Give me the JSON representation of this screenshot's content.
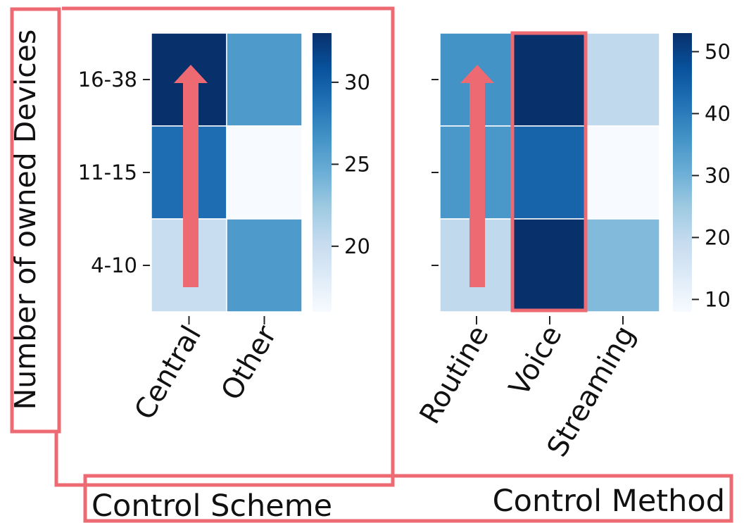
{
  "y_axis_label": "Number of owned Devices",
  "left_panel_title": "Control Scheme",
  "right_panel_title": "Control Method",
  "annotation_color": "#ee6a73",
  "chart_data": [
    {
      "type": "heatmap",
      "xlabel": "Control Scheme",
      "ylabel": "Number of owned Devices",
      "x_categories": [
        "Central",
        "Other"
      ],
      "y_categories": [
        "16-38",
        "11-15",
        "4-10"
      ],
      "values": [
        [
          33,
          26
        ],
        [
          29,
          16
        ],
        [
          20,
          26
        ]
      ],
      "colormap": "Blues",
      "colorbar_range": [
        16,
        33
      ],
      "colorbar_ticks": [
        20,
        25,
        30
      ],
      "annotations": [
        "upward arrow over Central column"
      ]
    },
    {
      "type": "heatmap",
      "xlabel": "Control Method",
      "ylabel": "Number of owned Devices",
      "x_categories": [
        "Routine",
        "Voice",
        "Streaming"
      ],
      "y_categories": [
        "16-38",
        "11-15",
        "4-10"
      ],
      "values": [
        [
          36,
          53,
          20
        ],
        [
          35,
          44,
          8
        ],
        [
          20,
          53,
          28
        ]
      ],
      "colormap": "Blues",
      "colorbar_range": [
        8,
        53
      ],
      "colorbar_ticks": [
        10,
        20,
        30,
        40,
        50
      ],
      "annotations": [
        "upward arrow over Routine column",
        "box around Voice column"
      ]
    }
  ]
}
